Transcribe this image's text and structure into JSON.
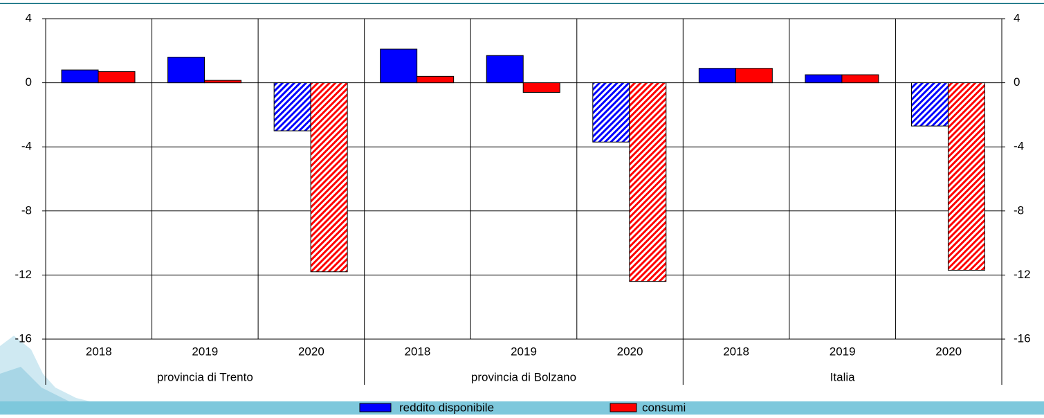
{
  "chart_data": {
    "type": "bar",
    "categories": [
      "2018",
      "2019",
      "2020",
      "2018",
      "2019",
      "2020",
      "2018",
      "2019",
      "2020"
    ],
    "groups": [
      "provincia di Trento",
      "provincia di Bolzano",
      "Italia"
    ],
    "series": [
      {
        "name": "reddito disponibile",
        "color": "#0000ff",
        "values": [
          0.8,
          1.6,
          -3.0,
          2.1,
          1.7,
          -3.7,
          0.9,
          0.5,
          -2.7
        ]
      },
      {
        "name": "consumi",
        "color": "#ff0000",
        "values": [
          0.7,
          0.15,
          -11.8,
          0.4,
          -0.6,
          -12.4,
          0.9,
          0.5,
          -11.7
        ]
      }
    ],
    "hatched": [
      false,
      false,
      true,
      false,
      false,
      true,
      false,
      false,
      true
    ],
    "ylim": [
      -16,
      4
    ],
    "yticks": [
      4,
      0,
      -4,
      -8,
      -12,
      -16
    ],
    "grid": true,
    "legend": "bottom"
  }
}
